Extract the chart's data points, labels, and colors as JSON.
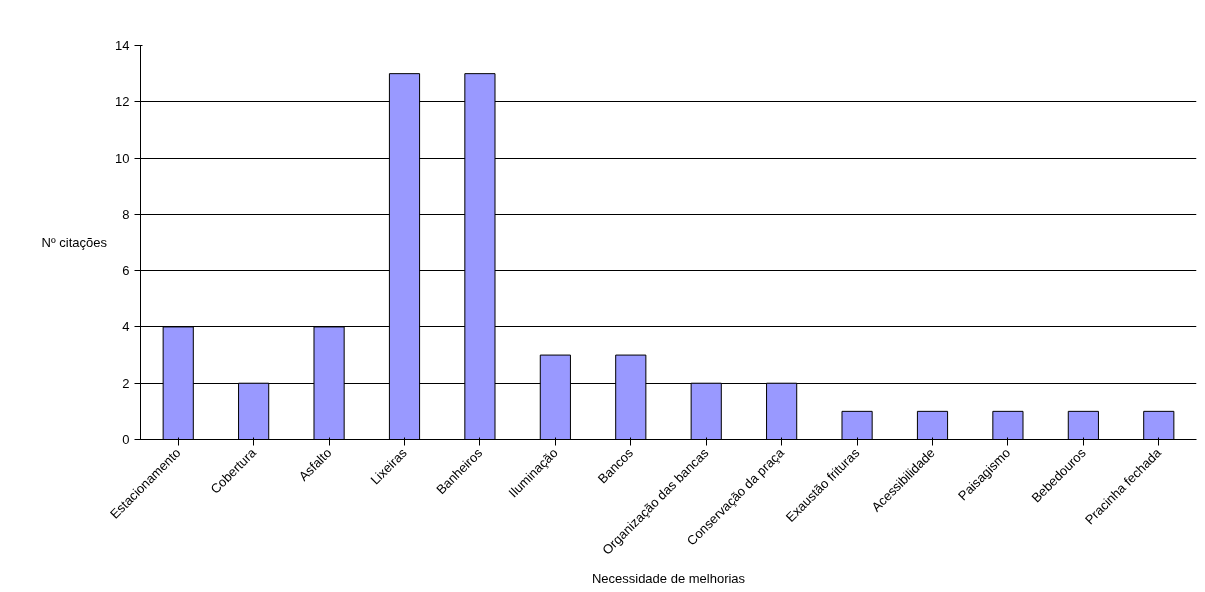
{
  "chart_data": {
    "type": "bar",
    "categories": [
      "Estacionamento",
      "Cobertura",
      "Asfalto",
      "Lixeiras",
      "Banheiros",
      "Iluminação",
      "Bancos",
      "Organização das bancas",
      "Conservação da praça",
      "Exaustão frituras",
      "Acessibilidade",
      "Paisagismo",
      "Bebedouros",
      "Pracinha fechada"
    ],
    "values": [
      4,
      2,
      4,
      13,
      13,
      3,
      3,
      2,
      2,
      1,
      1,
      1,
      1,
      1
    ],
    "color": "#9999ff",
    "xlabel": "Necessidade de melhorias",
    "ylabel": "Nº citações",
    "ylim": [
      0,
      14
    ],
    "yticks": [
      0,
      2,
      4,
      6,
      8,
      10,
      12,
      14
    ],
    "grid": "y"
  }
}
